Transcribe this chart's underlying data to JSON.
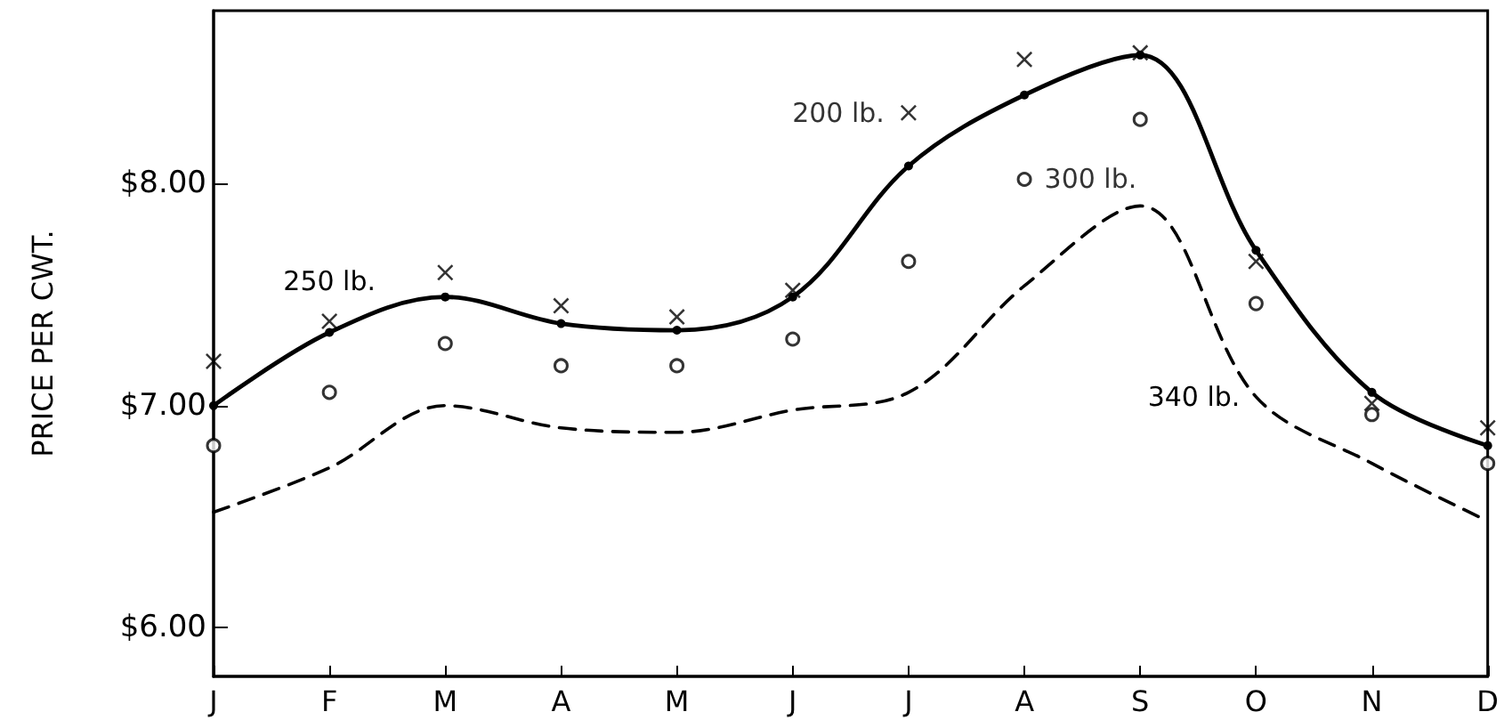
{
  "chart_data": {
    "type": "line",
    "ylabel": "PRICE PER CWT.",
    "categories": [
      "J",
      "F",
      "M",
      "A",
      "M",
      "J",
      "J",
      "A",
      "S",
      "O",
      "N",
      "D"
    ],
    "ylim": [
      5.78,
      8.78
    ],
    "yticks": [
      {
        "value": 6,
        "label": "$6.00"
      },
      {
        "value": 7,
        "label": "$7.00"
      },
      {
        "value": 8,
        "label": "$8.00"
      }
    ],
    "series": [
      {
        "name": "200 lb.",
        "type": "scatter",
        "marker": "cross",
        "color": "#000000",
        "values": [
          7.2,
          7.38,
          7.6,
          7.45,
          7.4,
          7.52,
          8.32,
          8.56,
          8.59,
          7.65,
          7.01,
          6.9
        ]
      },
      {
        "name": "250 lb.",
        "marker": "circle",
        "line_style": "solid",
        "color": "#000000",
        "values": [
          7.0,
          7.33,
          7.49,
          7.37,
          7.34,
          7.49,
          8.08,
          8.4,
          8.58,
          7.7,
          7.06,
          6.82
        ]
      },
      {
        "name": "300 lb.",
        "type": "scatter",
        "marker": "circle",
        "color": "#000000",
        "values": [
          6.82,
          7.06,
          7.28,
          7.18,
          7.18,
          7.3,
          7.65,
          8.02,
          8.29,
          7.46,
          6.96,
          6.74
        ]
      },
      {
        "name": "340 lb.",
        "marker": "none",
        "line_style": "dashed",
        "color": "#000000",
        "values": [
          6.52,
          6.72,
          7.0,
          6.9,
          6.88,
          6.98,
          7.06,
          7.54,
          7.9,
          7.04,
          6.74,
          6.48
        ]
      }
    ]
  }
}
